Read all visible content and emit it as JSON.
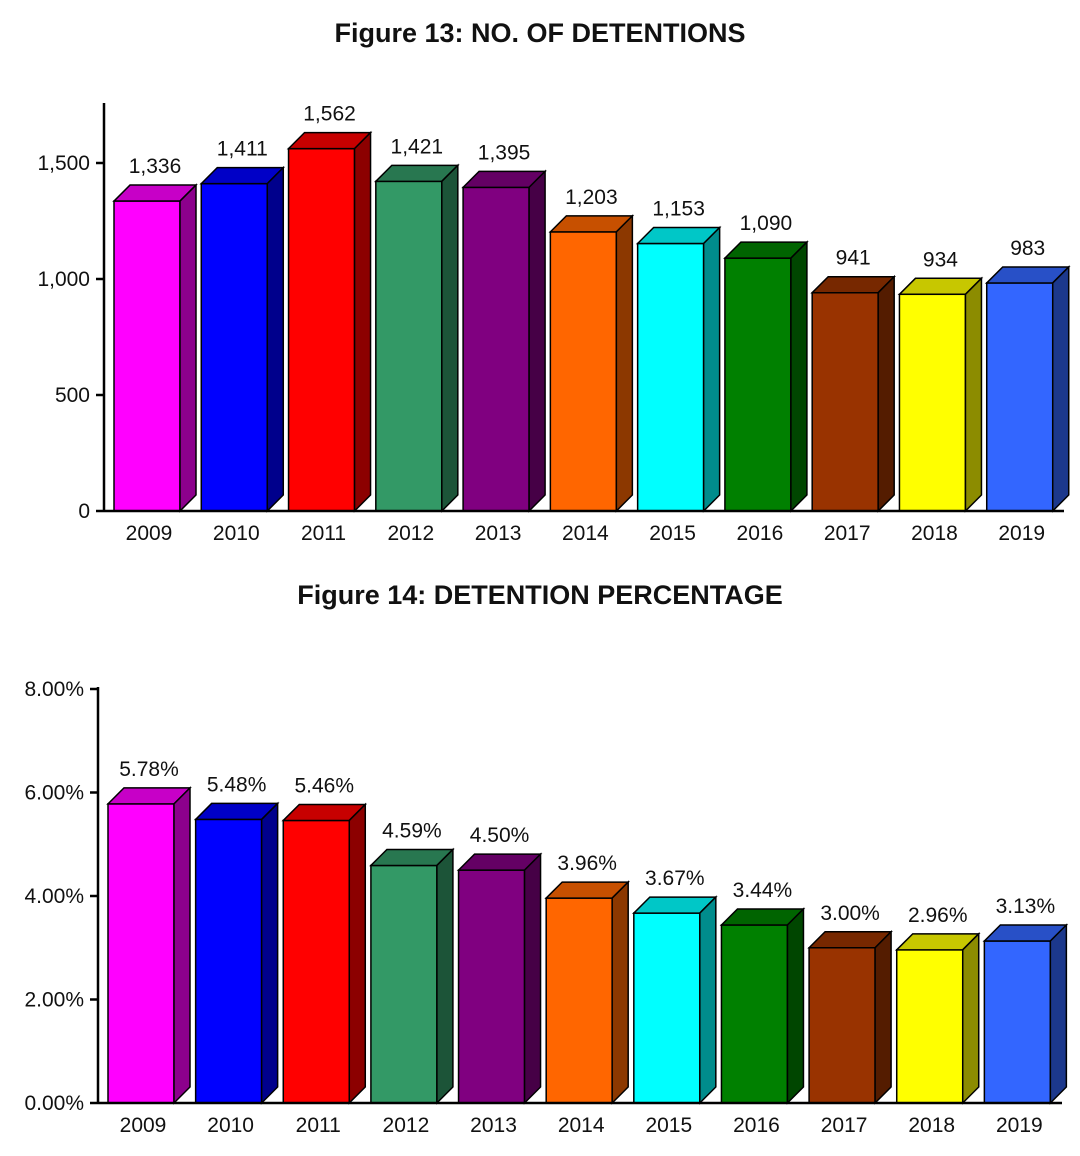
{
  "chart_data": [
    {
      "type": "bar",
      "title": "Figure 13: NO. OF DETENTIONS",
      "categories": [
        "2009",
        "2010",
        "2011",
        "2012",
        "2013",
        "2014",
        "2015",
        "2016",
        "2017",
        "2018",
        "2019"
      ],
      "values": [
        1336,
        1411,
        1562,
        1421,
        1395,
        1203,
        1153,
        1090,
        941,
        934,
        983
      ],
      "value_labels": [
        "1,336",
        "1,411",
        "1,562",
        "1,421",
        "1,395",
        "1,203",
        "1,153",
        "1,090",
        "941",
        "934",
        "983"
      ],
      "yticks": [
        0,
        500,
        1000,
        1500
      ],
      "ytick_labels": [
        "0",
        "500",
        "1,000",
        "1,500"
      ],
      "ylim": [
        0,
        1750
      ],
      "grid": false,
      "legend": "none",
      "xlabel": "",
      "ylabel": "",
      "colors": [
        "#ff00ff",
        "#0000ff",
        "#ff0000",
        "#339966",
        "#800080",
        "#ff6600",
        "#00ffff",
        "#008000",
        "#993300",
        "#ffff00",
        "#3366ff"
      ]
    },
    {
      "type": "bar",
      "title": "Figure 14: DETENTION PERCENTAGE",
      "categories": [
        "2009",
        "2010",
        "2011",
        "2012",
        "2013",
        "2014",
        "2015",
        "2016",
        "2017",
        "2018",
        "2019"
      ],
      "values": [
        5.78,
        5.48,
        5.46,
        4.59,
        4.5,
        3.96,
        3.67,
        3.44,
        3.0,
        2.96,
        3.13
      ],
      "value_labels": [
        "5.78%",
        "5.48%",
        "5.46%",
        "4.59%",
        "4.50%",
        "3.96%",
        "3.67%",
        "3.44%",
        "3.00%",
        "2.96%",
        "3.13%"
      ],
      "yticks": [
        0,
        2,
        4,
        6,
        8
      ],
      "ytick_labels": [
        "0.00%",
        "2.00%",
        "4.00%",
        "6.00%",
        "8.00%"
      ],
      "ylim": [
        0,
        8
      ],
      "grid": false,
      "legend": "none",
      "xlabel": "",
      "ylabel": "",
      "colors": [
        "#ff00ff",
        "#0000ff",
        "#ff0000",
        "#339966",
        "#800080",
        "#ff6600",
        "#00ffff",
        "#008000",
        "#993300",
        "#ffff00",
        "#3366ff"
      ]
    }
  ]
}
